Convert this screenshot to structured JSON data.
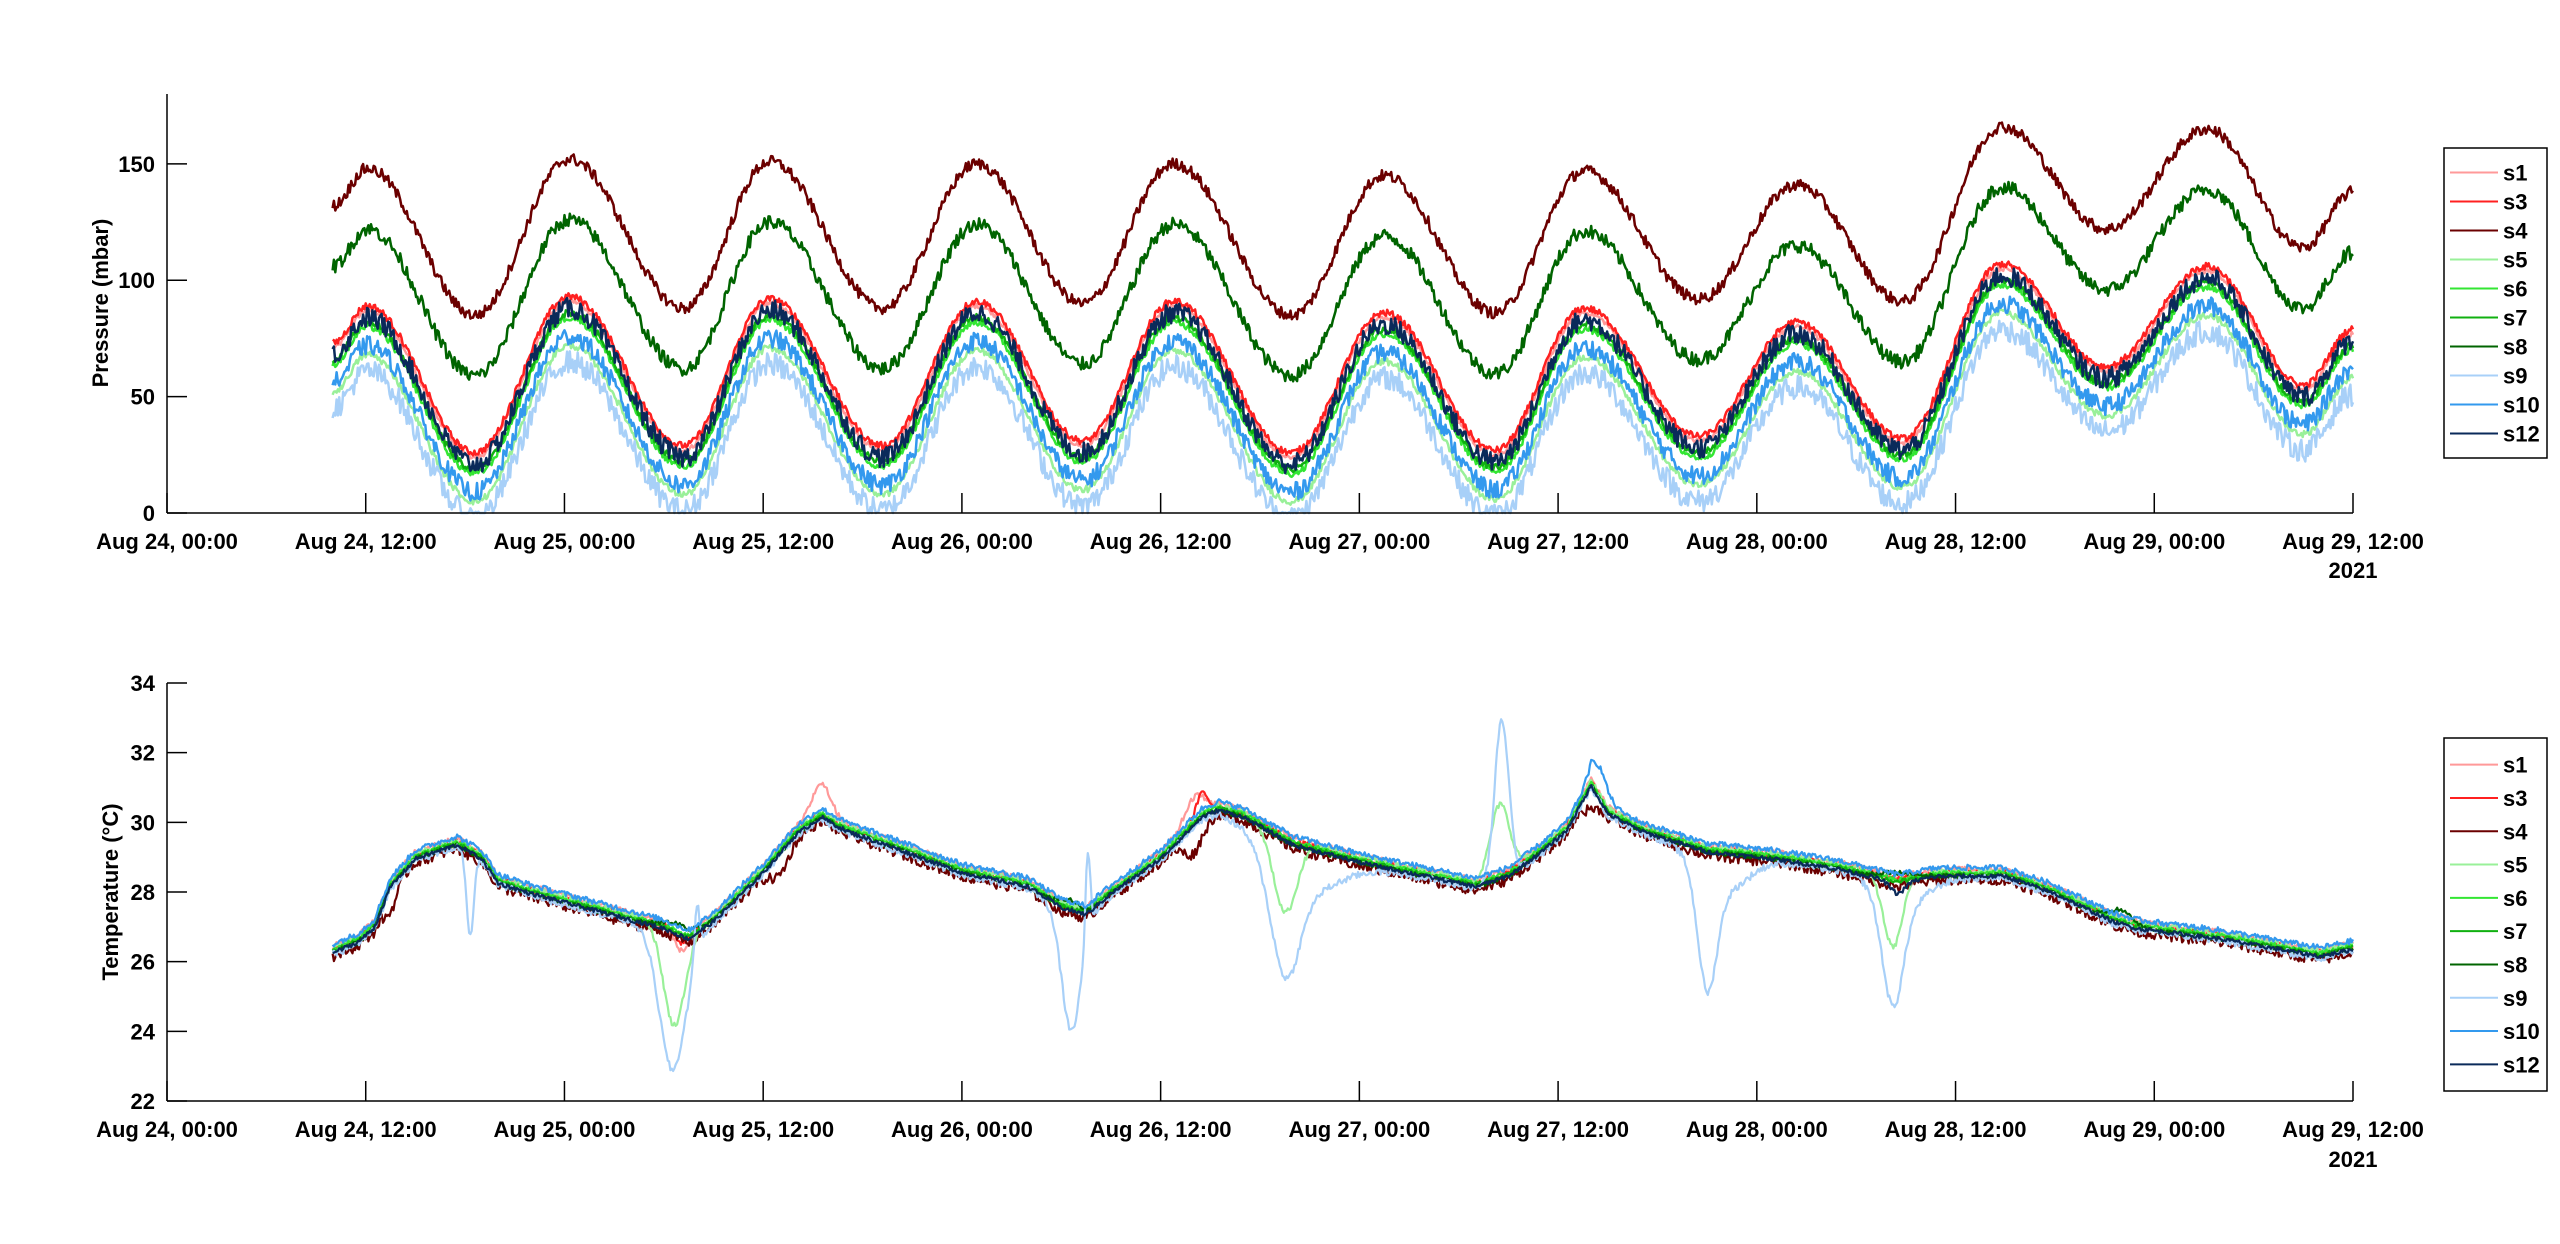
{
  "chart_data": [
    {
      "type": "line",
      "title": "",
      "xlabel": "",
      "ylabel": "Pressure (mbar)",
      "x_unit": "hours since Aug 24, 00:00 2021",
      "xlim": [
        0,
        132
      ],
      "ylim": [
        0,
        180
      ],
      "yticks": [
        0,
        50,
        100,
        150
      ],
      "xticks": [
        0,
        12,
        24,
        36,
        48,
        60,
        72,
        84,
        96,
        108,
        120,
        132
      ],
      "xtick_labels": [
        "Aug 24, 00:00",
        "Aug 24, 12:00",
        "Aug 25, 00:00",
        "Aug 25, 12:00",
        "Aug 26, 00:00",
        "Aug 26, 12:00",
        "Aug 27, 00:00",
        "Aug 27, 12:00",
        "Aug 28, 00:00",
        "Aug 28, 12:00",
        "Aug 29, 00:00",
        "Aug 29, 12:00"
      ],
      "year_label": "2021",
      "legend_position": "outside-right",
      "reference_series": "s4",
      "reference_extrema": [
        [
          10,
          132
        ],
        [
          12.1,
          148
        ],
        [
          18.6,
          85
        ],
        [
          24.3,
          152
        ],
        [
          31.2,
          88
        ],
        [
          36.4,
          151
        ],
        [
          43.2,
          88
        ],
        [
          48.9,
          150
        ],
        [
          55.3,
          90
        ],
        [
          60.8,
          150
        ],
        [
          67.9,
          85
        ],
        [
          73.5,
          145
        ],
        [
          80.2,
          86
        ],
        [
          85.6,
          147
        ],
        [
          92.5,
          92
        ],
        [
          98.4,
          141
        ],
        [
          104.8,
          91
        ],
        [
          110.8,
          166
        ],
        [
          117.1,
          122
        ],
        [
          123.2,
          165
        ],
        [
          129,
          114
        ],
        [
          132,
          138
        ]
      ],
      "series": [
        {
          "name": "s1",
          "color": "#ff9999",
          "offset": 61,
          "noise": 1.0
        },
        {
          "name": "s3",
          "color": "#ff2020",
          "offset": 59,
          "noise": 1.5
        },
        {
          "name": "s4",
          "color": "#6b0000",
          "offset": 0,
          "noise": 2.5
        },
        {
          "name": "s5",
          "color": "#99f099",
          "offset": 80,
          "noise": 1.5
        },
        {
          "name": "s6",
          "color": "#33e633",
          "offset": 68,
          "noise": 1.5
        },
        {
          "name": "s7",
          "color": "#10b010",
          "offset": 66,
          "noise": 1.5
        },
        {
          "name": "s8",
          "color": "#006400",
          "offset": 26,
          "noise": 3.0
        },
        {
          "name": "s9",
          "color": "#a8d0f8",
          "offset": 87,
          "noise": 5.0
        },
        {
          "name": "s10",
          "color": "#3399ee",
          "offset": 76,
          "noise": 4.0
        },
        {
          "name": "s12",
          "color": "#0a2a5a",
          "offset": 64,
          "noise": 4.5
        }
      ]
    },
    {
      "type": "line",
      "title": "",
      "xlabel": "",
      "ylabel": "Temperature (°C)",
      "x_unit": "hours since Aug 24, 00:00 2021",
      "xlim": [
        0,
        132
      ],
      "ylim": [
        22,
        34
      ],
      "yticks": [
        22,
        24,
        26,
        28,
        30,
        32,
        34
      ],
      "xticks": [
        0,
        12,
        24,
        36,
        48,
        60,
        72,
        84,
        96,
        108,
        120,
        132
      ],
      "xtick_labels": [
        "Aug 24, 00:00",
        "Aug 24, 12:00",
        "Aug 25, 00:00",
        "Aug 25, 12:00",
        "Aug 26, 00:00",
        "Aug 26, 12:00",
        "Aug 27, 00:00",
        "Aug 27, 12:00",
        "Aug 28, 00:00",
        "Aug 28, 12:00",
        "Aug 29, 00:00",
        "Aug 29, 12:00"
      ],
      "year_label": "2021",
      "legend_position": "outside-right",
      "base_curve": [
        [
          10,
          26.3
        ],
        [
          11.5,
          26.6
        ],
        [
          12.5,
          27.0
        ],
        [
          13.5,
          28.2
        ],
        [
          15,
          29.0
        ],
        [
          17.5,
          29.4
        ],
        [
          19,
          29.0
        ],
        [
          20,
          28.3
        ],
        [
          22,
          28.0
        ],
        [
          26,
          27.5
        ],
        [
          30,
          27.0
        ],
        [
          31.5,
          26.7
        ],
        [
          33,
          27.2
        ],
        [
          36,
          28.6
        ],
        [
          38,
          29.7
        ],
        [
          39.5,
          30.2
        ],
        [
          41,
          29.8
        ],
        [
          44,
          29.3
        ],
        [
          48,
          28.6
        ],
        [
          52,
          28.2
        ],
        [
          54,
          27.6
        ],
        [
          55.5,
          27.4
        ],
        [
          57,
          28.0
        ],
        [
          60,
          29.0
        ],
        [
          62.5,
          30.2
        ],
        [
          63.5,
          30.4
        ],
        [
          65,
          30.2
        ],
        [
          68,
          29.4
        ],
        [
          72,
          28.9
        ],
        [
          76,
          28.5
        ],
        [
          79,
          28.2
        ],
        [
          81,
          28.5
        ],
        [
          83,
          29.2
        ],
        [
          84.5,
          29.8
        ],
        [
          86,
          31.1
        ],
        [
          87,
          30.3
        ],
        [
          89,
          29.8
        ],
        [
          93,
          29.2
        ],
        [
          97,
          29.0
        ],
        [
          101,
          28.7
        ],
        [
          104.5,
          28.3
        ],
        [
          107,
          28.5
        ],
        [
          111,
          28.5
        ],
        [
          114,
          28.0
        ],
        [
          117.5,
          27.2
        ],
        [
          119,
          27.0
        ],
        [
          124,
          26.7
        ],
        [
          130,
          26.2
        ],
        [
          132,
          26.4
        ]
      ],
      "series": [
        {
          "name": "s1",
          "color": "#ff9999",
          "offset": 0.15,
          "noise": 0.08,
          "events": [
            [
              39.5,
              0.8,
              0.8
            ],
            [
              62,
              0.6,
              0.8
            ],
            [
              31,
              -0.6,
              0.6
            ]
          ]
        },
        {
          "name": "s3",
          "color": "#ff2020",
          "offset": 0.05,
          "noise": 0.08,
          "events": [
            [
              62.5,
              0.6,
              0.5
            ],
            [
              31,
              -0.3,
              0.4
            ]
          ]
        },
        {
          "name": "s4",
          "color": "#6b0000",
          "offset": -0.15,
          "noise": 0.15,
          "events": [
            [
              13.5,
              -0.6,
              0.5
            ],
            [
              37,
              -0.5,
              0.8
            ],
            [
              62,
              -0.7,
              0.8
            ],
            [
              86,
              -0.5,
              0.5
            ]
          ]
        },
        {
          "name": "s5",
          "color": "#99f099",
          "offset": 0.1,
          "noise": 0.08,
          "events": [
            [
              30.6,
              -2.8,
              0.9
            ],
            [
              67.5,
              -2.2,
              1.0
            ],
            [
              80.5,
              2.0,
              0.8
            ],
            [
              104.2,
              -2.0,
              0.8
            ]
          ]
        },
        {
          "name": "s6",
          "color": "#33e633",
          "offset": 0.05,
          "noise": 0.06,
          "events": []
        },
        {
          "name": "s7",
          "color": "#10b010",
          "offset": 0.0,
          "noise": 0.06,
          "events": []
        },
        {
          "name": "s8",
          "color": "#006400",
          "offset": -0.05,
          "noise": 0.06,
          "events": [
            [
              31,
              0.3,
              1.5
            ],
            [
              54.5,
              0.3,
              1.0
            ],
            [
              104.5,
              0.3,
              1.5
            ],
            [
              118,
              0.4,
              1.0
            ]
          ]
        },
        {
          "name": "s9",
          "color": "#a8d0f8",
          "offset": -0.1,
          "noise": 0.1,
          "events": [
            [
              18.3,
              -2.4,
              0.3
            ],
            [
              30.5,
              -3.9,
              1.1
            ],
            [
              32,
              1.5,
              0.2
            ],
            [
              54.6,
              -3.4,
              0.8
            ],
            [
              55.6,
              2.5,
              0.2
            ],
            [
              67.5,
              -2.8,
              1.2
            ],
            [
              68.5,
              -1.2,
              3.0
            ],
            [
              80.6,
              4.6,
              0.6
            ],
            [
              93,
              -3.2,
              0.8
            ],
            [
              94,
              -1.0,
              2.0
            ],
            [
              104.2,
              -3.0,
              0.9
            ],
            [
              105,
              -0.6,
              2.0
            ]
          ]
        },
        {
          "name": "s10",
          "color": "#3399ee",
          "offset": 0.2,
          "noise": 0.08,
          "events": [
            [
              86.5,
              0.7,
              0.7
            ]
          ]
        },
        {
          "name": "s12",
          "color": "#0a2a5a",
          "offset": -0.05,
          "noise": 0.06,
          "events": [
            [
              104.5,
              -0.3,
              0.6
            ]
          ]
        }
      ]
    }
  ]
}
